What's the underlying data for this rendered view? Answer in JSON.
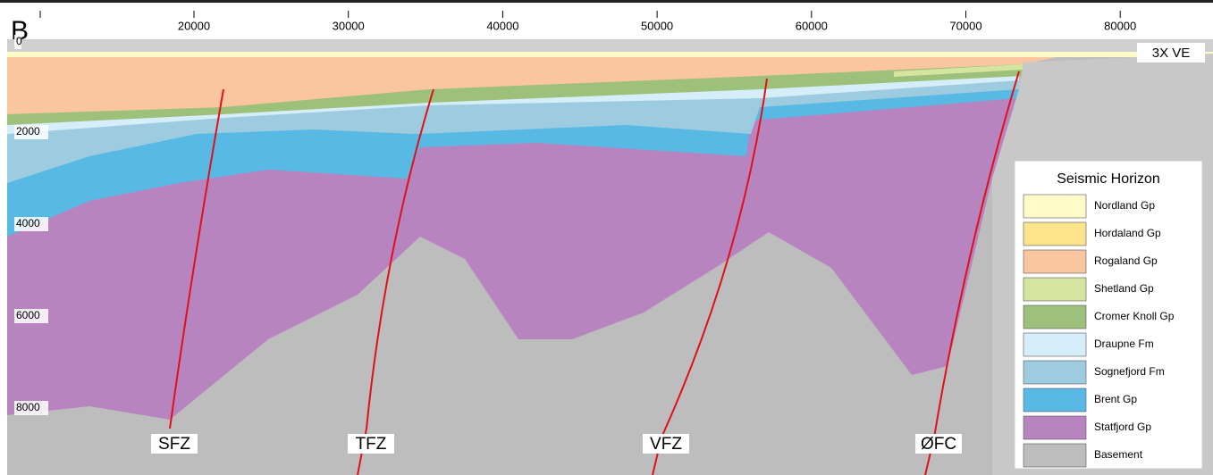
{
  "panel_label": "B",
  "x_axis": {
    "ticks": [
      20000,
      30000,
      40000,
      50000,
      60000,
      70000,
      80000
    ]
  },
  "y_axis": {
    "ticks": [
      0,
      2000,
      4000,
      6000,
      8000
    ]
  },
  "annotation": "3X VE",
  "faults": [
    "SFZ",
    "TFZ",
    "VFZ",
    "ØFC"
  ],
  "legend": {
    "title": "Seismic Horizon",
    "items": [
      {
        "name": "Nordland Gp",
        "color": "#fffbc8"
      },
      {
        "name": "Hordaland Gp",
        "color": "#fde38c"
      },
      {
        "name": "Rogaland Gp",
        "color": "#f9c6a0"
      },
      {
        "name": "Shetland Gp",
        "color": "#d5e5a0"
      },
      {
        "name": "Cromer Knoll Gp",
        "color": "#9dc07a"
      },
      {
        "name": "Draupne Fm",
        "color": "#d6eef9"
      },
      {
        "name": "Sognefjord Fm",
        "color": "#9dcce0"
      },
      {
        "name": "Brent Gp",
        "color": "#59b9e5"
      },
      {
        "name": "Statfjord Gp",
        "color": "#b884c0"
      },
      {
        "name": "Basement",
        "color": "#bdbdbd"
      }
    ]
  }
}
